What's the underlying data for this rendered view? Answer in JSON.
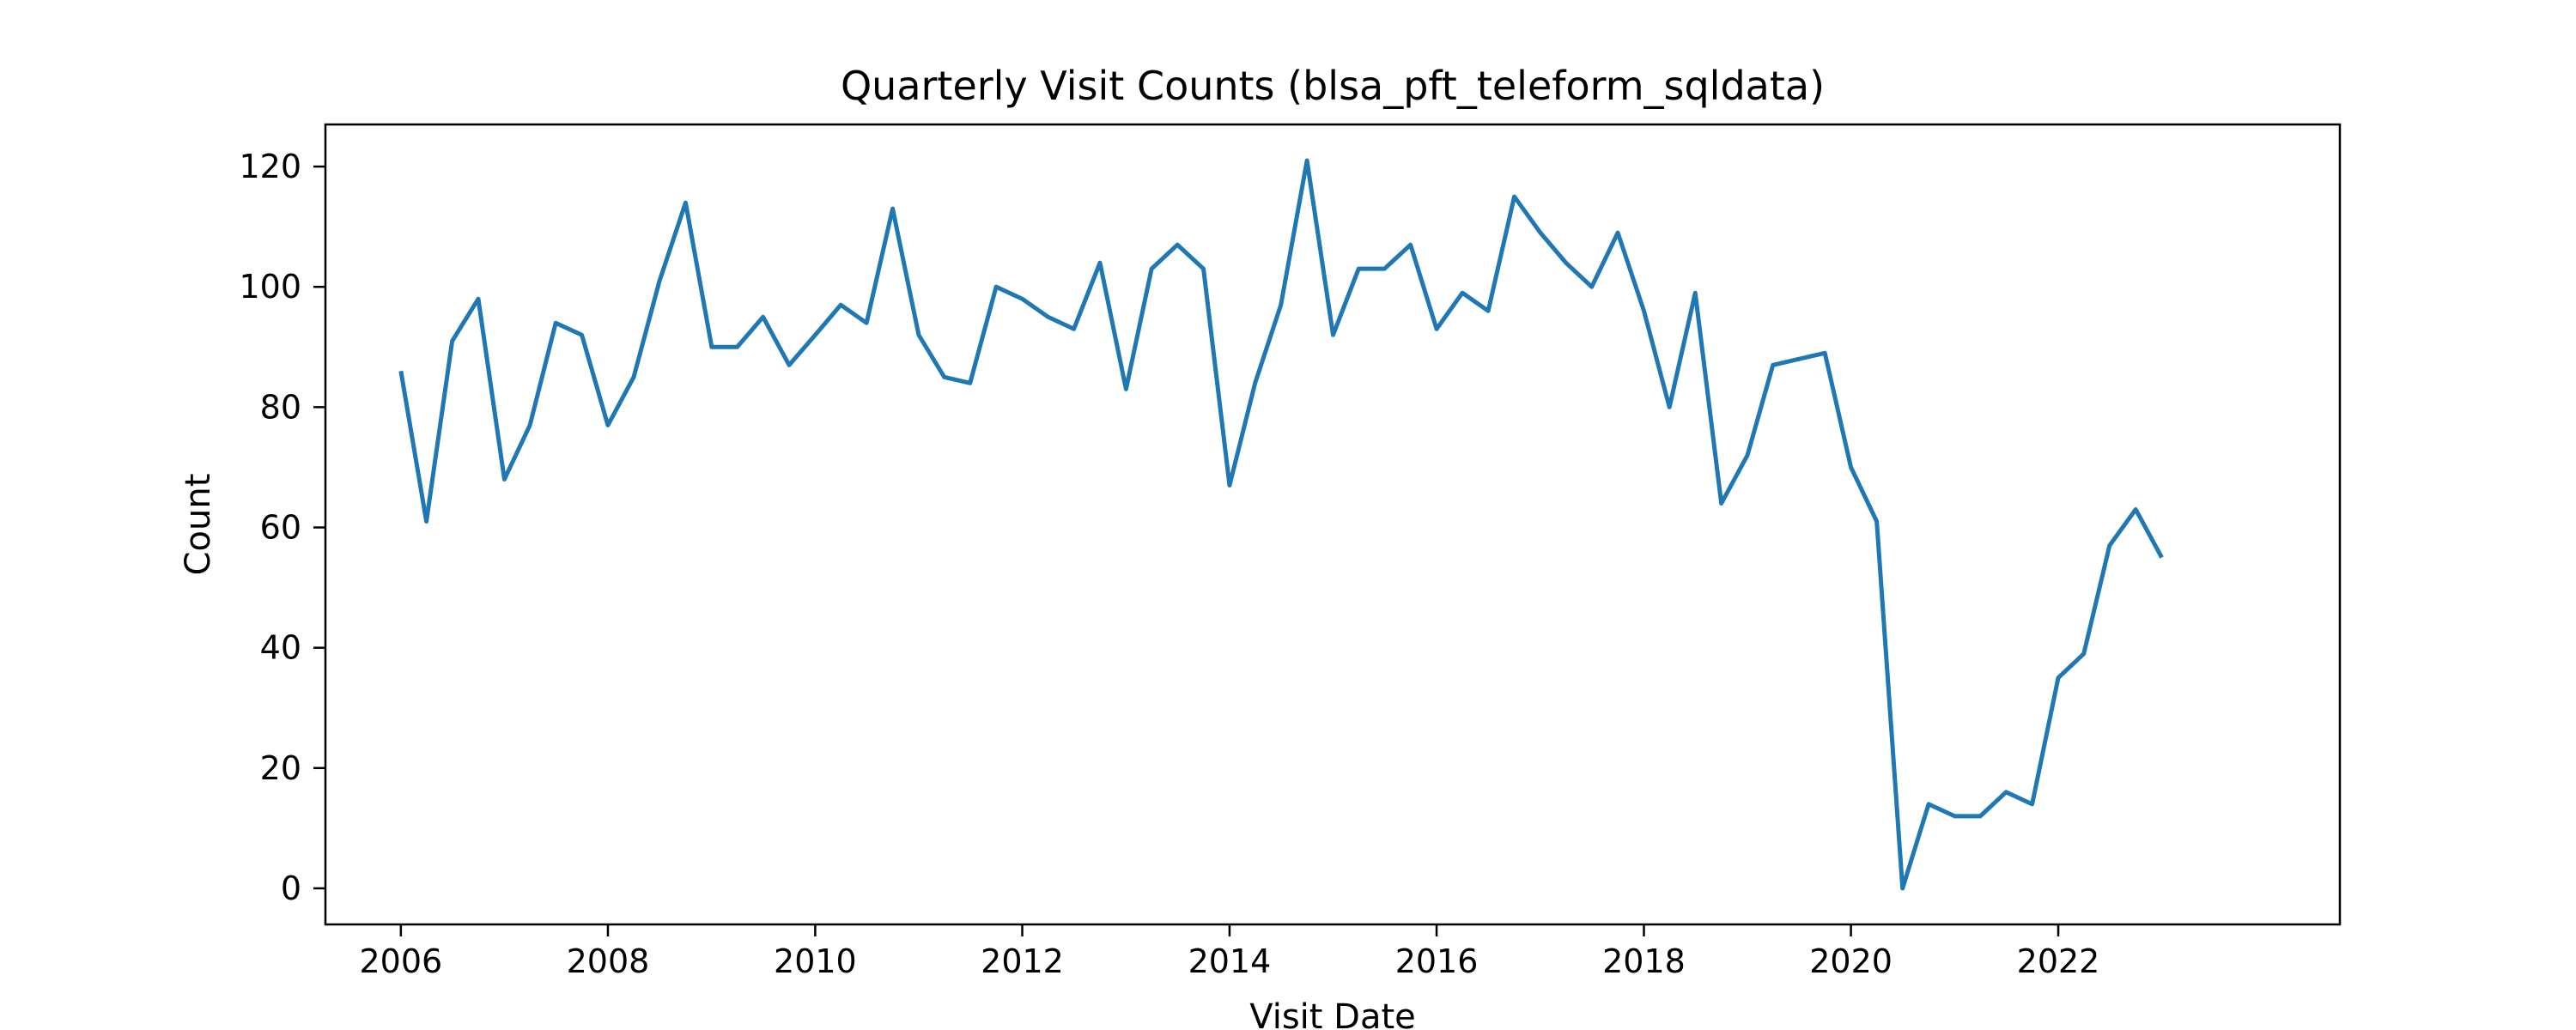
{
  "chart_data": {
    "type": "line",
    "title": "Quarterly Visit Counts (blsa_pft_teleform_sqldata)",
    "xlabel": "Visit Date",
    "ylabel": "Count",
    "x_axis": {
      "kind": "date",
      "ticks": [
        "2006",
        "2008",
        "2010",
        "2012",
        "2014",
        "2016",
        "2018",
        "2020",
        "2022"
      ],
      "range": [
        "2005-04-10",
        "2024-09-20"
      ]
    },
    "y_axis": {
      "ticks": [
        0,
        20,
        40,
        60,
        80,
        100,
        120
      ],
      "range": [
        -6,
        127
      ]
    },
    "grid": false,
    "legend": "none",
    "colors": {
      "line": "#1f77b4"
    },
    "series": [
      {
        "x": [
          "2006-01-01",
          "2006-04-01",
          "2006-07-01",
          "2006-10-01",
          "2007-01-01",
          "2007-04-01",
          "2007-07-01",
          "2007-10-01",
          "2008-01-01",
          "2008-04-01",
          "2008-07-01",
          "2008-10-01",
          "2009-01-01",
          "2009-04-01",
          "2009-07-01",
          "2009-10-01",
          "2010-01-01",
          "2010-04-01",
          "2010-07-01",
          "2010-10-01",
          "2011-01-01",
          "2011-04-01",
          "2011-07-01",
          "2011-10-01",
          "2012-01-01",
          "2012-04-01",
          "2012-07-01",
          "2012-10-01",
          "2013-01-01",
          "2013-04-01",
          "2013-07-01",
          "2013-10-01",
          "2014-01-01",
          "2014-04-01",
          "2014-07-01",
          "2014-10-01",
          "2015-01-01",
          "2015-04-01",
          "2015-07-01",
          "2015-10-01",
          "2016-01-01",
          "2016-04-01",
          "2016-07-01",
          "2016-10-01",
          "2017-01-01",
          "2017-04-01",
          "2017-07-01",
          "2017-10-01",
          "2018-01-01",
          "2018-04-01",
          "2018-07-01",
          "2018-10-01",
          "2019-01-01",
          "2019-04-01",
          "2019-07-01",
          "2019-10-01",
          "2020-01-01",
          "2020-04-01",
          "2020-07-01",
          "2020-10-01",
          "2021-01-01",
          "2021-04-01",
          "2021-07-01",
          "2021-10-01",
          "2022-01-01",
          "2022-04-01",
          "2022-07-01",
          "2022-10-01",
          "2023-01-01"
        ],
        "values": [
          86,
          61,
          91,
          98,
          68,
          77,
          94,
          92,
          77,
          85,
          101,
          114,
          90,
          90,
          95,
          87,
          92,
          97,
          94,
          113,
          92,
          85,
          84,
          100,
          98,
          95,
          93,
          104,
          83,
          103,
          107,
          103,
          67,
          84,
          97,
          121,
          92,
          103,
          103,
          107,
          93,
          99,
          96,
          115,
          109,
          104,
          100,
          109,
          96,
          80,
          99,
          64,
          72,
          87,
          88,
          89,
          70,
          61,
          0,
          14,
          12,
          12,
          16,
          14,
          35,
          39,
          57,
          63,
          55
        ]
      }
    ]
  }
}
